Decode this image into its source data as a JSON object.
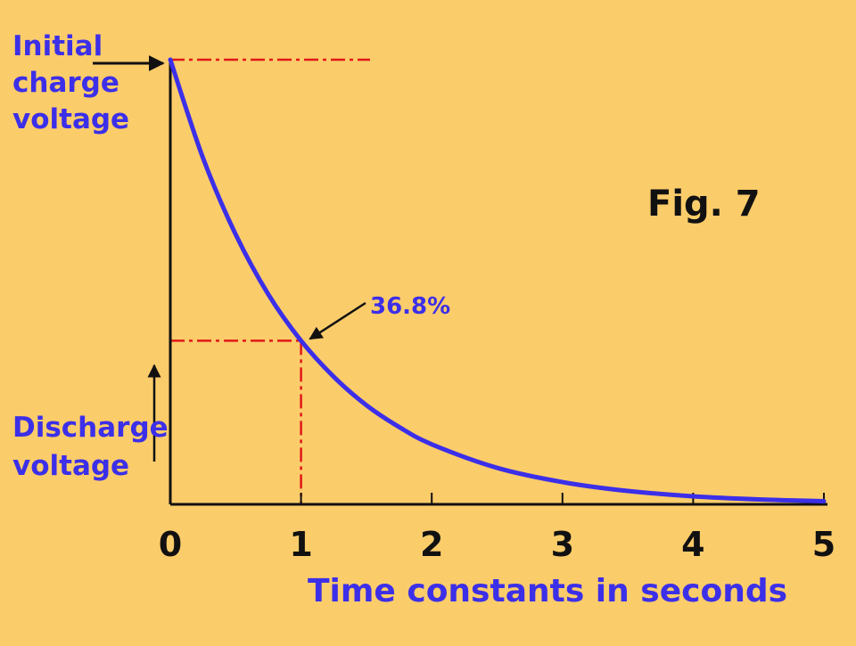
{
  "chart_data": {
    "type": "line",
    "title": "Fig. 7",
    "xlabel": "Time constants in seconds",
    "ylabel": "Discharge voltage",
    "x_ticks": [
      "0",
      "1",
      "2",
      "3",
      "4",
      "5"
    ],
    "xlim": [
      0,
      5
    ],
    "ylim": [
      0,
      1
    ],
    "grid": false,
    "series": [
      {
        "x": [
          0,
          0.25,
          0.5,
          0.75,
          1,
          1.25,
          1.5,
          1.75,
          2,
          2.5,
          3,
          3.5,
          4,
          4.5,
          5
        ],
        "y": [
          1,
          0.779,
          0.607,
          0.472,
          0.368,
          0.287,
          0.223,
          0.174,
          0.135,
          0.082,
          0.05,
          0.03,
          0.018,
          0.011,
          0.007
        ]
      }
    ],
    "annotations": [
      {
        "id": "initial",
        "text": [
          "Initial",
          "charge",
          "voltage"
        ],
        "x": 0,
        "y": 1
      },
      {
        "id": "pct",
        "text": "36.8%",
        "x": 1,
        "y": 0.368
      }
    ]
  }
}
